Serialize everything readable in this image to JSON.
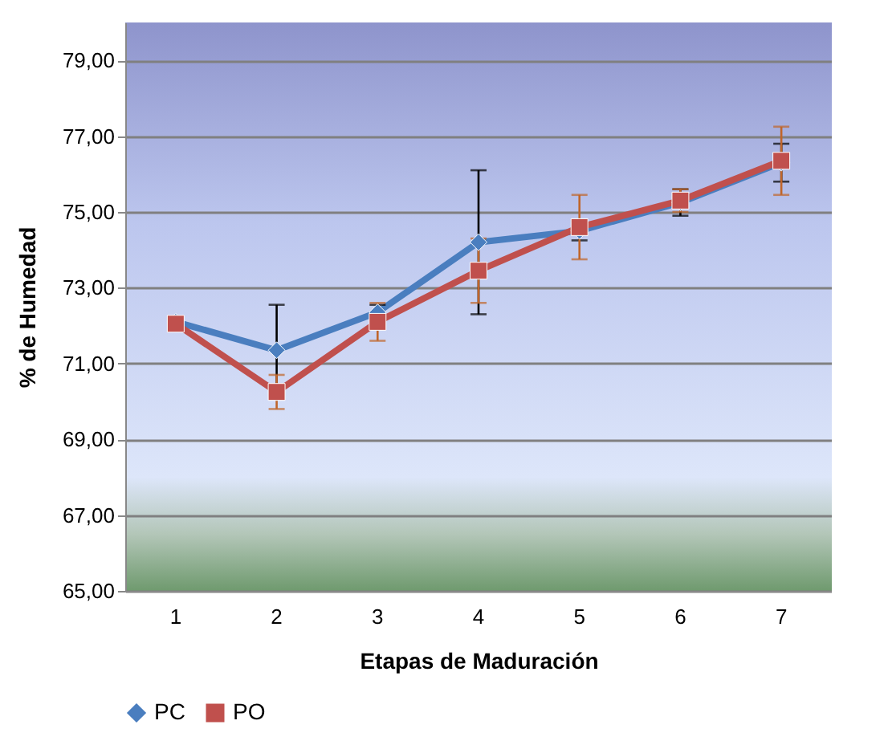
{
  "chart_data": {
    "type": "line",
    "xlabel": "Etapas de Maduración",
    "ylabel": "% de Humedad",
    "categories": [
      "1",
      "2",
      "3",
      "4",
      "5",
      "6",
      "7"
    ],
    "series": [
      {
        "name": "PC",
        "color": "#4a7ebf",
        "marker": "diamond",
        "values": [
          72.1,
          71.35,
          72.35,
          74.2,
          74.5,
          75.25,
          76.3
        ],
        "errors": [
          null,
          1.2,
          0.2,
          1.9,
          0.25,
          0.35,
          0.5
        ]
      },
      {
        "name": "PO",
        "color": "#c0504d",
        "marker": "square",
        "values": [
          72.05,
          70.25,
          72.1,
          73.45,
          74.6,
          75.3,
          76.35
        ],
        "errors": [
          null,
          0.45,
          0.5,
          0.85,
          0.85,
          0.3,
          0.9
        ]
      }
    ],
    "ylim": [
      65,
      80
    ],
    "yticks": [
      {
        "value": 65,
        "label": "65,00"
      },
      {
        "value": 67,
        "label": "67,00"
      },
      {
        "value": 69,
        "label": "69,00"
      },
      {
        "value": 71,
        "label": "71,00"
      },
      {
        "value": 73,
        "label": "73,00"
      },
      {
        "value": 75,
        "label": "75,00"
      },
      {
        "value": 77,
        "label": "77,00"
      },
      {
        "value": 79,
        "label": "79,00"
      }
    ],
    "grid": "y",
    "legend": "bottom",
    "line_style": "solid"
  }
}
